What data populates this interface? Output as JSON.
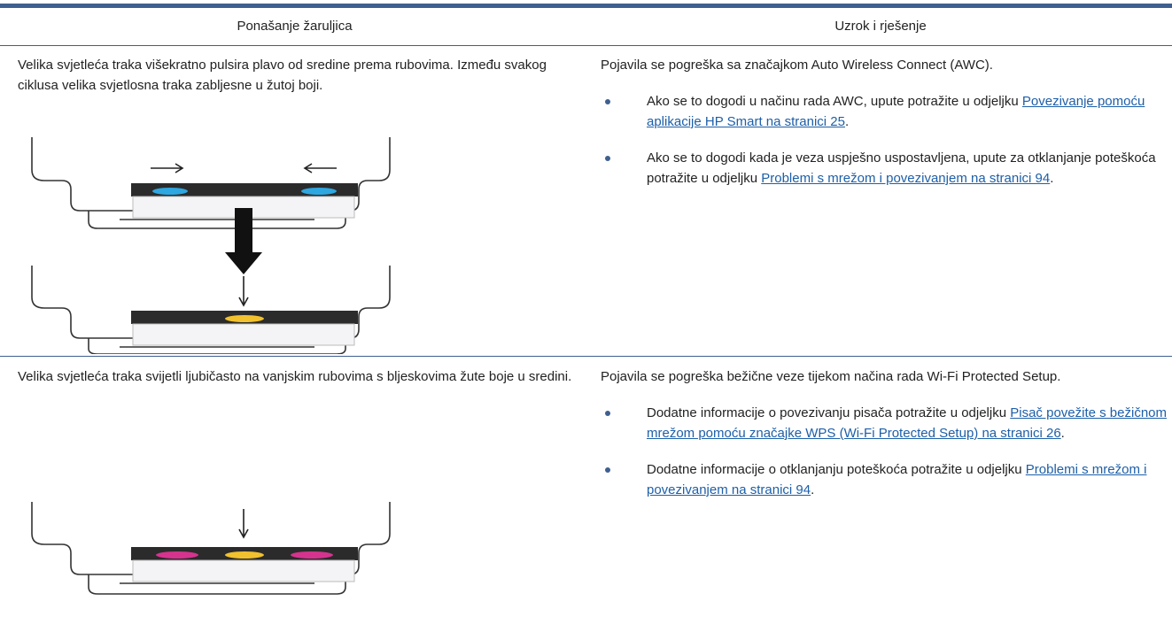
{
  "table": {
    "header": [
      "Ponašanje žaruljica",
      "Uzrok i rješenje"
    ],
    "rows": [
      {
        "behavior": "Velika svjetleća traka višekratno pulsira plavo od sredine prema rubovima. Između svakog ciklusa velika svjetlosna traka zabljesne u žutoj boji.",
        "cause": "Pojavila se pogreška sa značajkom Auto Wireless Connect (AWC).",
        "bullets": [
          {
            "text": "Ako se to dogodi u načinu rada AWC, upute potražite u odjeljku",
            "link": "Povezivanje pomoću aplikacije HP Smart na stranici 25",
            "end": "."
          },
          {
            "text": "Ako se to dogodi kada je veza uspješno uspostavljena, upute za otklanjanje poteškoća potražite u odjeljku",
            "link": "Problemi s mrežom i povezivanjem na stranici 94",
            "end": "."
          }
        ]
      },
      {
        "behavior": "Velika svjetleća traka svijetli ljubičasto na vanjskim rubovima s bljeskovima žute boje u sredini.",
        "cause": "Pojavila se pogreška bežične veze tijekom načina rada Wi-Fi Protected Setup.",
        "bullets": [
          {
            "text": "Dodatne informacije o povezivanju pisača potražite u odjeljku",
            "link": "Pisač povežite s bežičnom mrežom pomoću značajke WPS (Wi-Fi Protected Setup) na stranici 26",
            "end": "."
          },
          {
            "text": "Dodatne informacije o otklanjanju poteškoća potražite u odjeljku",
            "link": "Problemi s mrežom i povezivanjem na stranici 94",
            "end": "."
          }
        ]
      }
    ]
  }
}
